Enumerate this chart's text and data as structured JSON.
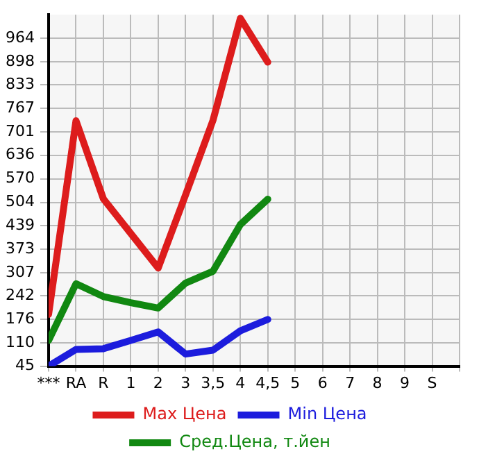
{
  "chart_data": {
    "type": "line",
    "categories": [
      "***",
      "RA",
      "R",
      "1",
      "2",
      "3",
      "3,5",
      "4",
      "4,5",
      "5",
      "6",
      "7",
      "8",
      "9",
      "S"
    ],
    "series": [
      {
        "name": "Max Цена",
        "color": "#dd1c1c",
        "values": [
          190,
          733,
          514,
          417,
          320,
          525,
          734,
          1020,
          897,
          null,
          null,
          null,
          null,
          null,
          null
        ]
      },
      {
        "name": "Min Цена",
        "color": "#1c1cdd",
        "values": [
          45,
          92,
          94,
          117,
          141,
          79,
          90,
          144,
          176,
          null,
          null,
          null,
          null,
          null,
          null
        ]
      },
      {
        "name": "Сред.Цена, т.йен",
        "color": "#118811",
        "values": [
          117,
          276,
          240,
          223,
          208,
          278,
          311,
          442,
          513,
          null,
          null,
          null,
          null,
          null,
          null
        ]
      }
    ],
    "ylim": [
      45,
      1030
    ],
    "yticks": [
      45,
      110,
      176,
      242,
      307,
      373,
      439,
      504,
      570,
      636,
      701,
      767,
      833,
      898,
      964
    ],
    "grid": true,
    "legend": "bottom",
    "marker": "none",
    "line_style": "solid"
  }
}
